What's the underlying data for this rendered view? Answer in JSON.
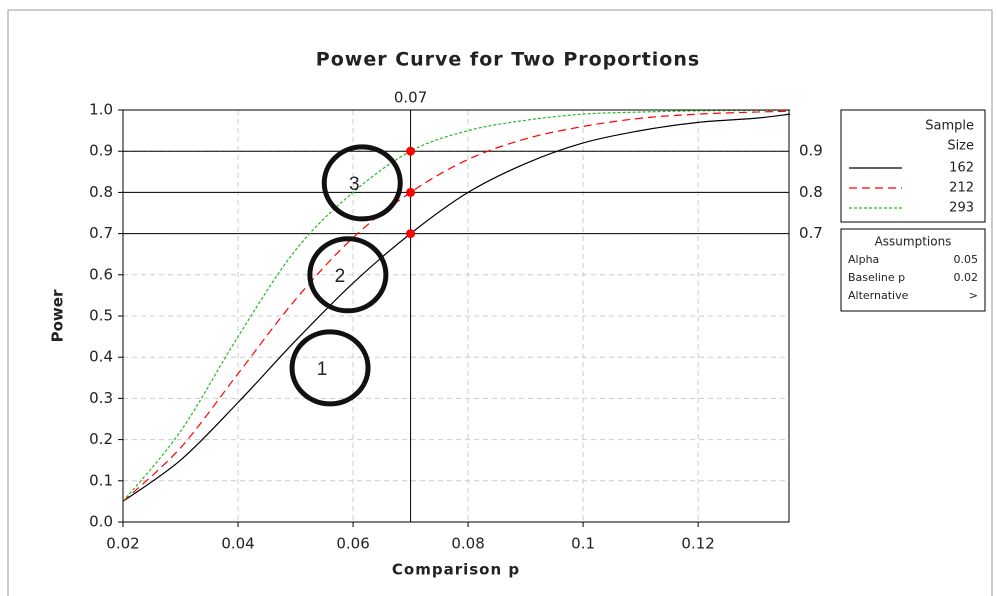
{
  "chart_data": {
    "type": "line",
    "title": "Power Curve for Two Proportions",
    "x_label": "Comparison p",
    "y_label": "Power",
    "x": [
      0.02,
      0.03,
      0.04,
      0.05,
      0.06,
      0.07,
      0.08,
      0.09,
      0.1,
      0.11,
      0.12,
      0.13,
      0.136
    ],
    "series": [
      {
        "name": "162",
        "color": "#000000",
        "dash": "none",
        "values": [
          0.05,
          0.15,
          0.29,
          0.44,
          0.58,
          0.7,
          0.8,
          0.87,
          0.92,
          0.95,
          0.97,
          0.98,
          0.99
        ]
      },
      {
        "name": "212",
        "color": "#ff0000",
        "dash": "8,5",
        "values": [
          0.05,
          0.18,
          0.36,
          0.54,
          0.69,
          0.8,
          0.88,
          0.93,
          0.96,
          0.98,
          0.99,
          0.995,
          0.997
        ]
      },
      {
        "name": "293",
        "color": "#22bb22",
        "dash": "3,2",
        "values": [
          0.05,
          0.22,
          0.45,
          0.66,
          0.8,
          0.9,
          0.95,
          0.975,
          0.99,
          0.995,
          0.998,
          0.999,
          1.0
        ]
      }
    ],
    "xlim": [
      0.02,
      0.1358
    ],
    "ylim": [
      0,
      1
    ],
    "xticks": [
      0.02,
      0.04,
      0.06,
      0.08,
      0.1,
      0.12
    ],
    "yticks": [
      {
        "value": 0,
        "label": "0.0"
      },
      0.1,
      0.2,
      0.3,
      0.4,
      0.5,
      0.6,
      0.7,
      0.8,
      0.9,
      {
        "value": 1,
        "label": "1.0"
      }
    ],
    "grid": true,
    "reference_x": [
      0.07
    ],
    "reference_y": [
      0.7,
      0.8,
      0.9
    ],
    "reference_color": "#ff0000",
    "legend_title_lines": [
      "Sample",
      "Size"
    ],
    "assumptions": {
      "title": "Assumptions",
      "rows": [
        [
          "Alpha",
          "0.05"
        ],
        [
          "Baseline p",
          "0.02"
        ],
        [
          "Alternative",
          ">"
        ]
      ]
    },
    "annotations": [
      {
        "text": "1",
        "x": 0.056,
        "y": 0.374
      },
      {
        "text": "2",
        "x": 0.0591,
        "y": 0.6
      },
      {
        "text": "3",
        "x": 0.0616,
        "y": 0.823
      }
    ]
  }
}
